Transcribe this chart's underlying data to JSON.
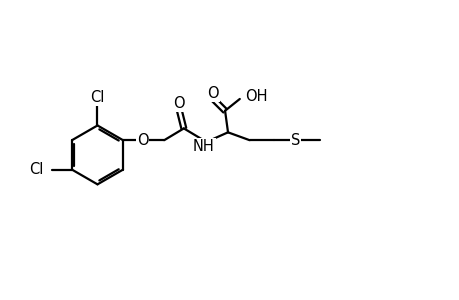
{
  "background_color": "#ffffff",
  "line_color": "#000000",
  "line_width": 1.6,
  "font_size": 10.5,
  "figsize": [
    4.6,
    3.0
  ],
  "dpi": 100,
  "xlim": [
    0,
    46
  ],
  "ylim": [
    0,
    30
  ]
}
